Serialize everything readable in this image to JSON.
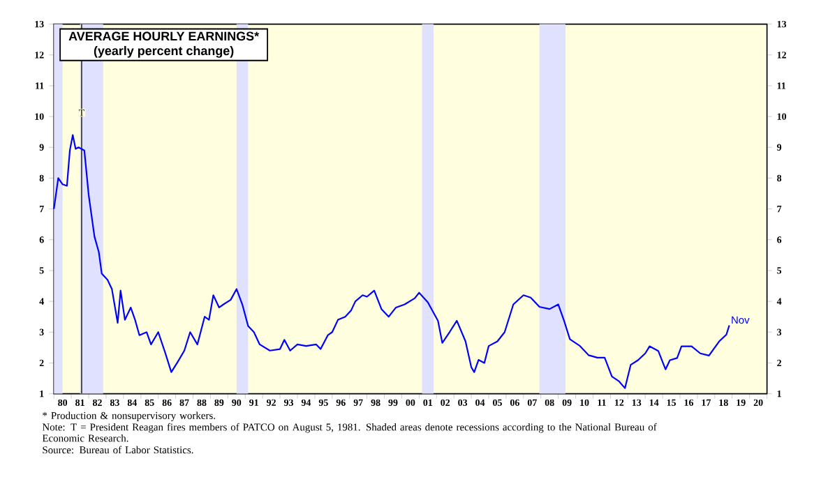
{
  "chart_data": {
    "type": "line",
    "title": "AVERAGE HOURLY EARNINGS*",
    "subtitle": "(yearly percent change)",
    "series": [
      {
        "color": "#0000ff",
        "x": [
          "1980-01",
          "1980-04",
          "1980-07",
          "1980-10",
          "1980-12",
          "1981-02",
          "1981-04",
          "1981-06",
          "1981-10",
          "1982-01",
          "1982-05",
          "1982-08",
          "1982-10",
          "1983-02",
          "1983-05",
          "1983-09",
          "1983-11",
          "1984-02",
          "1984-06",
          "1984-09",
          "1984-12",
          "1985-05",
          "1985-08",
          "1986-01",
          "1986-06",
          "1986-10",
          "1987-02",
          "1987-07",
          "1987-11",
          "1988-04",
          "1988-09",
          "1988-12",
          "1989-03",
          "1989-07",
          "1989-10",
          "1990-03",
          "1990-07",
          "1990-11",
          "1991-03",
          "1991-07",
          "1991-11",
          "1992-06",
          "1993-01",
          "1993-04",
          "1993-08",
          "1994-01",
          "1994-07",
          "1995-02",
          "1995-05",
          "1995-10",
          "1996-01",
          "1996-05",
          "1996-10",
          "1997-02",
          "1997-05",
          "1997-10",
          "1998-01",
          "1998-06",
          "1998-11",
          "1999-04",
          "1999-09",
          "2000-03",
          "2000-10",
          "2001-01",
          "2001-07",
          "2002-02",
          "2002-05",
          "2002-10",
          "2003-03",
          "2003-09",
          "2004-01",
          "2004-03",
          "2004-06",
          "2004-10",
          "2005-01",
          "2005-07",
          "2005-12",
          "2006-06",
          "2007-01",
          "2007-06",
          "2007-12",
          "2008-07",
          "2009-01",
          "2009-05",
          "2009-09",
          "2010-04",
          "2010-10",
          "2011-04",
          "2011-09",
          "2012-02",
          "2012-07",
          "2012-11",
          "2013-03",
          "2013-08",
          "2014-01",
          "2014-04",
          "2014-10",
          "2015-03",
          "2015-06",
          "2015-11",
          "2016-02",
          "2016-09",
          "2017-03",
          "2017-09",
          "2018-04",
          "2018-09",
          "2018-11"
        ],
        "values": [
          7.0,
          8.0,
          7.8,
          7.75,
          8.9,
          9.4,
          8.95,
          9.0,
          8.9,
          7.45,
          6.1,
          5.6,
          4.9,
          4.7,
          4.4,
          3.3,
          4.35,
          3.4,
          3.8,
          3.4,
          2.9,
          3.0,
          2.6,
          3.0,
          2.3,
          1.7,
          2.0,
          2.4,
          3.0,
          2.6,
          3.5,
          3.4,
          4.2,
          3.8,
          3.9,
          4.05,
          4.4,
          3.9,
          3.2,
          3.0,
          2.6,
          2.4,
          2.45,
          2.75,
          2.4,
          2.6,
          2.55,
          2.6,
          2.45,
          2.9,
          3.0,
          3.4,
          3.5,
          3.7,
          4.0,
          4.2,
          4.15,
          4.35,
          3.75,
          3.5,
          3.8,
          3.9,
          4.1,
          4.28,
          3.97,
          3.37,
          2.65,
          3.0,
          3.37,
          2.7,
          1.86,
          1.7,
          2.1,
          2.0,
          2.55,
          2.7,
          3.0,
          3.9,
          4.2,
          4.12,
          3.82,
          3.75,
          3.9,
          3.37,
          2.77,
          2.55,
          2.25,
          2.17,
          2.17,
          1.56,
          1.4,
          1.18,
          1.94,
          2.09,
          2.31,
          2.54,
          2.39,
          1.79,
          2.09,
          2.16,
          2.54,
          2.54,
          2.31,
          2.24,
          2.7,
          2.92,
          3.22
        ]
      }
    ],
    "xlim": [
      "1980-01",
      "2021-01"
    ],
    "xticks": [
      {
        "value": "1980-07",
        "label": "80"
      },
      {
        "value": "1981-07",
        "label": "81"
      },
      {
        "value": "1982-07",
        "label": "82"
      },
      {
        "value": "1983-07",
        "label": "83"
      },
      {
        "value": "1984-07",
        "label": "84"
      },
      {
        "value": "1985-07",
        "label": "85"
      },
      {
        "value": "1986-07",
        "label": "86"
      },
      {
        "value": "1987-07",
        "label": "87"
      },
      {
        "value": "1988-07",
        "label": "88"
      },
      {
        "value": "1989-07",
        "label": "89"
      },
      {
        "value": "1990-07",
        "label": "90"
      },
      {
        "value": "1991-07",
        "label": "91"
      },
      {
        "value": "1992-07",
        "label": "92"
      },
      {
        "value": "1993-07",
        "label": "93"
      },
      {
        "value": "1994-07",
        "label": "94"
      },
      {
        "value": "1995-07",
        "label": "95"
      },
      {
        "value": "1996-07",
        "label": "96"
      },
      {
        "value": "1997-07",
        "label": "97"
      },
      {
        "value": "1998-07",
        "label": "98"
      },
      {
        "value": "1999-07",
        "label": "99"
      },
      {
        "value": "2000-07",
        "label": "00"
      },
      {
        "value": "2001-07",
        "label": "01"
      },
      {
        "value": "2002-07",
        "label": "02"
      },
      {
        "value": "2003-07",
        "label": "03"
      },
      {
        "value": "2004-07",
        "label": "04"
      },
      {
        "value": "2005-07",
        "label": "05"
      },
      {
        "value": "2006-07",
        "label": "06"
      },
      {
        "value": "2007-07",
        "label": "07"
      },
      {
        "value": "2008-07",
        "label": "08"
      },
      {
        "value": "2009-07",
        "label": "09"
      },
      {
        "value": "2010-07",
        "label": "10"
      },
      {
        "value": "2011-07",
        "label": "11"
      },
      {
        "value": "2012-07",
        "label": "12"
      },
      {
        "value": "2013-07",
        "label": "13"
      },
      {
        "value": "2014-07",
        "label": "14"
      },
      {
        "value": "2015-07",
        "label": "15"
      },
      {
        "value": "2016-07",
        "label": "16"
      },
      {
        "value": "2017-07",
        "label": "17"
      },
      {
        "value": "2018-07",
        "label": "18"
      },
      {
        "value": "2019-07",
        "label": "19"
      },
      {
        "value": "2020-07",
        "label": "20"
      },
      {
        "value": "1980-01",
        "label": null
      },
      {
        "value": "1981-01",
        "label": null
      },
      {
        "value": "1982-01",
        "label": null
      },
      {
        "value": "1983-01",
        "label": null
      },
      {
        "value": "1984-01",
        "label": null
      },
      {
        "value": "1985-01",
        "label": null
      },
      {
        "value": "1986-01",
        "label": null
      },
      {
        "value": "1987-01",
        "label": null
      },
      {
        "value": "1988-01",
        "label": null
      },
      {
        "value": "1989-01",
        "label": null
      },
      {
        "value": "1990-01",
        "label": null
      },
      {
        "value": "1991-01",
        "label": null
      },
      {
        "value": "1992-01",
        "label": null
      },
      {
        "value": "1993-01",
        "label": null
      },
      {
        "value": "1994-01",
        "label": null
      },
      {
        "value": "1995-01",
        "label": null
      },
      {
        "value": "1996-01",
        "label": null
      },
      {
        "value": "1997-01",
        "label": null
      },
      {
        "value": "1998-01",
        "label": null
      },
      {
        "value": "1999-01",
        "label": null
      },
      {
        "value": "2000-01",
        "label": null
      },
      {
        "value": "2001-01",
        "label": null
      },
      {
        "value": "2002-01",
        "label": null
      },
      {
        "value": "2003-01",
        "label": null
      },
      {
        "value": "2004-01",
        "label": null
      },
      {
        "value": "2005-01",
        "label": null
      },
      {
        "value": "2006-01",
        "label": null
      },
      {
        "value": "2007-01",
        "label": null
      },
      {
        "value": "2008-01",
        "label": null
      },
      {
        "value": "2009-01",
        "label": null
      },
      {
        "value": "2010-01",
        "label": null
      },
      {
        "value": "2011-01",
        "label": null
      },
      {
        "value": "2012-01",
        "label": null
      },
      {
        "value": "2013-01",
        "label": null
      },
      {
        "value": "2014-01",
        "label": null
      },
      {
        "value": "2015-01",
        "label": null
      },
      {
        "value": "2016-01",
        "label": null
      },
      {
        "value": "2017-01",
        "label": null
      },
      {
        "value": "2018-01",
        "label": null
      },
      {
        "value": "2019-01",
        "label": null
      },
      {
        "value": "2020-01",
        "label": null
      },
      {
        "value": "2021-01",
        "label": null
      }
    ],
    "ylim": [
      1,
      13
    ],
    "yticks": [
      1,
      2,
      3,
      4,
      5,
      6,
      7,
      8,
      9,
      10,
      11,
      12,
      13
    ],
    "y2lim": [
      1,
      13
    ],
    "y2ticks": [
      1,
      2,
      3,
      4,
      5,
      6,
      7,
      8,
      9,
      10,
      11,
      12,
      13
    ],
    "bands": [
      {
        "axis": "x",
        "from": "1980-01",
        "to": "1980-07",
        "color": "#e0e0ff"
      },
      {
        "axis": "x",
        "from": "1981-07",
        "to": "1982-11",
        "color": "#e0e0ff"
      },
      {
        "axis": "x",
        "from": "1990-07",
        "to": "1991-03",
        "color": "#e0e0ff"
      },
      {
        "axis": "x",
        "from": "2001-03",
        "to": "2001-11",
        "color": "#e0e0ff"
      },
      {
        "axis": "x",
        "from": "2007-12",
        "to": "2009-06",
        "color": "#e0e0ff"
      }
    ],
    "ref_lines": [
      {
        "axis": "x",
        "value": "1981-08-05",
        "label": "T",
        "color": "#404040"
      }
    ],
    "annotations": [
      "* Production & nonsupervisory workers.",
      "Note: T = President Reagan fires members of PATCO on August 5, 1981. Shaded areas denote recessions according to the National Bureau of Economic Research.",
      "Source: Bureau of Labor Statistics.",
      {
        "text": "Nov",
        "x": "2018-11",
        "y": 3.22
      }
    ],
    "line_style": "solid",
    "marker": "none",
    "grid": false
  }
}
